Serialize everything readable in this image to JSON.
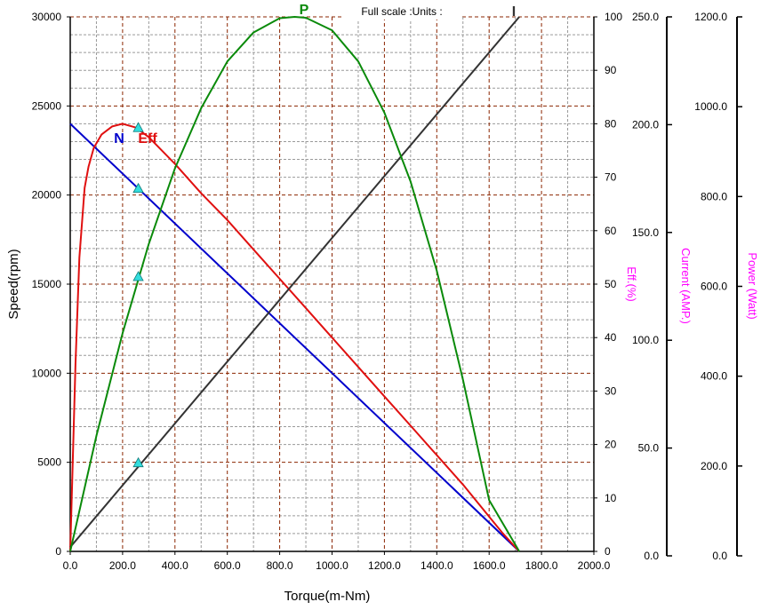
{
  "chart_data": {
    "type": "line",
    "header_note": "Full scale :Units :",
    "xlabel": "Torque(m-Nm)",
    "xlim": [
      0,
      2000
    ],
    "xticks": [
      "0.0",
      "200.0",
      "400.0",
      "600.0",
      "800.0",
      "1000.0",
      "1200.0",
      "1400.0",
      "1600.0",
      "1800.0",
      "2000.0"
    ],
    "grid": true,
    "axes": {
      "speed": {
        "label": "Speed(rpm)",
        "lim": [
          0,
          30000
        ],
        "ticks": [
          "0",
          "5000",
          "10000",
          "15000",
          "20000",
          "25000",
          "30000"
        ],
        "color": "#000000"
      },
      "eff": {
        "label": "Eff.(%)",
        "lim": [
          0,
          100
        ],
        "ticks": [
          "0",
          "10",
          "20",
          "30",
          "40",
          "50",
          "60",
          "70",
          "80",
          "90",
          "100"
        ],
        "color": "#ff00ff"
      },
      "current": {
        "label": "Current (AMP.)",
        "lim": [
          0,
          250
        ],
        "ticks": [
          "0.0",
          "50.0",
          "100.0",
          "150.0",
          "200.0",
          "250.0"
        ],
        "color": "#ff00ff"
      },
      "power": {
        "label": "Power (Watt)",
        "lim": [
          0,
          1200
        ],
        "ticks": [
          "0.0",
          "200.0",
          "400.0",
          "600.0",
          "800.0",
          "1000.0",
          "1200.0"
        ],
        "color": "#ff00ff"
      }
    },
    "series": [
      {
        "name": "N",
        "axis": "speed",
        "color": "#0000cc",
        "x": [
          0,
          1715
        ],
        "y": [
          24000,
          0
        ]
      },
      {
        "name": "Eff",
        "axis": "eff",
        "color": "#e01010",
        "x": [
          0,
          20,
          35,
          55,
          70,
          90,
          120,
          160,
          200,
          250,
          300,
          400,
          500,
          600,
          700,
          800,
          900,
          1000,
          1100,
          1200,
          1300,
          1400,
          1500,
          1600,
          1650,
          1700,
          1715
        ],
        "y": [
          0,
          35,
          55,
          68,
          72,
          75.5,
          78,
          79.5,
          80,
          79.3,
          77.5,
          72.5,
          67,
          62,
          56.5,
          51,
          45.5,
          40,
          34.5,
          29,
          23.5,
          18,
          12.5,
          6.5,
          3.5,
          0.8,
          0
        ]
      },
      {
        "name": "I",
        "axis": "current",
        "color": "#333333",
        "x": [
          0,
          1715
        ],
        "y": [
          2,
          250
        ]
      },
      {
        "name": "P",
        "axis": "power",
        "color": "#0a8a0a",
        "x": [
          0,
          100,
          200,
          300,
          400,
          500,
          600,
          700,
          800,
          857,
          900,
          1000,
          1100,
          1200,
          1300,
          1400,
          1500,
          1600,
          1715
        ],
        "y": [
          0,
          260,
          490,
          690,
          860,
          995,
          1100,
          1165,
          1197,
          1200,
          1198,
          1170,
          1100,
          985,
          830,
          630,
          385,
          115,
          0
        ]
      }
    ],
    "markers": {
      "color": "#33dddd",
      "x": 260,
      "points": [
        {
          "axis": "speed",
          "y": 20350
        },
        {
          "axis": "speed",
          "y": 15400
        },
        {
          "axis": "speed",
          "y": 4950
        },
        {
          "axis": "eff",
          "y": 79.2
        }
      ]
    }
  }
}
